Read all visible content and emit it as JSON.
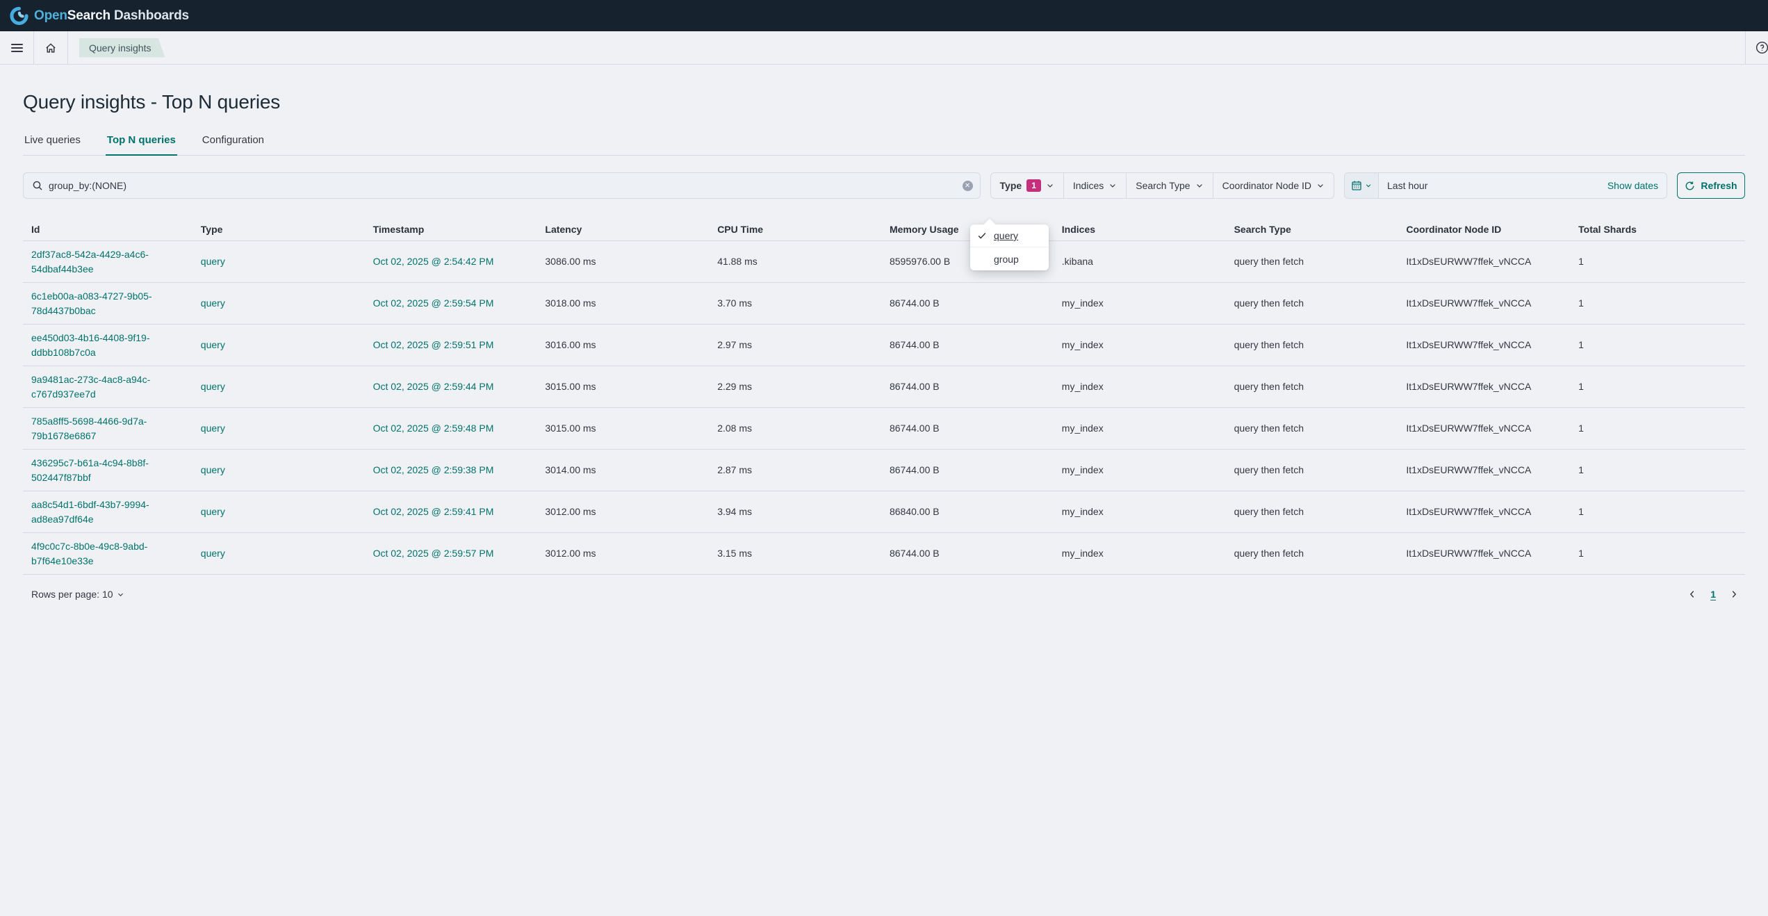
{
  "topbar": {
    "brand_open": "Open",
    "brand_search": "Search",
    "brand_rest": " Dashboards"
  },
  "nav": {
    "breadcrumb": "Query insights"
  },
  "page": {
    "title": "Query insights - Top N queries"
  },
  "tabs": [
    {
      "label": "Live queries",
      "active": false
    },
    {
      "label": "Top N queries",
      "active": true
    },
    {
      "label": "Configuration",
      "active": false
    }
  ],
  "search": {
    "value": "group_by:(NONE)",
    "placeholder": ""
  },
  "filters": [
    {
      "label": "Type",
      "badge": "1"
    },
    {
      "label": "Indices"
    },
    {
      "label": "Search Type"
    },
    {
      "label": "Coordinator Node ID"
    }
  ],
  "type_popover": {
    "items": [
      {
        "label": "query",
        "checked": true
      },
      {
        "label": "group",
        "checked": false
      }
    ]
  },
  "datepicker": {
    "value": "Last hour",
    "show_dates_label": "Show dates",
    "refresh_label": "Refresh"
  },
  "table": {
    "headers": [
      "Id",
      "Type",
      "Timestamp",
      "Latency",
      "CPU Time",
      "Memory Usage",
      "Indices",
      "Search Type",
      "Coordinator Node ID",
      "Total Shards"
    ],
    "rows": [
      {
        "id": "2df37ac8-542a-4429-a4c6-54dbaf44b3ee",
        "type": "query",
        "timestamp": "Oct 02, 2025 @ 2:54:42 PM",
        "latency": "3086.00 ms",
        "cpu": "41.88 ms",
        "memory": "8595976.00 B",
        "indices": ".kibana",
        "search_type": "query then fetch",
        "node": "It1xDsEURWW7ffek_vNCCA",
        "shards": "1"
      },
      {
        "id": "6c1eb00a-a083-4727-9b05-78d4437b0bac",
        "type": "query",
        "timestamp": "Oct 02, 2025 @ 2:59:54 PM",
        "latency": "3018.00 ms",
        "cpu": "3.70 ms",
        "memory": "86744.00 B",
        "indices": "my_index",
        "search_type": "query then fetch",
        "node": "It1xDsEURWW7ffek_vNCCA",
        "shards": "1"
      },
      {
        "id": "ee450d03-4b16-4408-9f19-ddbb108b7c0a",
        "type": "query",
        "timestamp": "Oct 02, 2025 @ 2:59:51 PM",
        "latency": "3016.00 ms",
        "cpu": "2.97 ms",
        "memory": "86744.00 B",
        "indices": "my_index",
        "search_type": "query then fetch",
        "node": "It1xDsEURWW7ffek_vNCCA",
        "shards": "1"
      },
      {
        "id": "9a9481ac-273c-4ac8-a94c-c767d937ee7d",
        "type": "query",
        "timestamp": "Oct 02, 2025 @ 2:59:44 PM",
        "latency": "3015.00 ms",
        "cpu": "2.29 ms",
        "memory": "86744.00 B",
        "indices": "my_index",
        "search_type": "query then fetch",
        "node": "It1xDsEURWW7ffek_vNCCA",
        "shards": "1"
      },
      {
        "id": "785a8ff5-5698-4466-9d7a-79b1678e6867",
        "type": "query",
        "timestamp": "Oct 02, 2025 @ 2:59:48 PM",
        "latency": "3015.00 ms",
        "cpu": "2.08 ms",
        "memory": "86744.00 B",
        "indices": "my_index",
        "search_type": "query then fetch",
        "node": "It1xDsEURWW7ffek_vNCCA",
        "shards": "1"
      },
      {
        "id": "436295c7-b61a-4c94-8b8f-502447f87bbf",
        "type": "query",
        "timestamp": "Oct 02, 2025 @ 2:59:38 PM",
        "latency": "3014.00 ms",
        "cpu": "2.87 ms",
        "memory": "86744.00 B",
        "indices": "my_index",
        "search_type": "query then fetch",
        "node": "It1xDsEURWW7ffek_vNCCA",
        "shards": "1"
      },
      {
        "id": "aa8c54d1-6bdf-43b7-9994-ad8ea97df64e",
        "type": "query",
        "timestamp": "Oct 02, 2025 @ 2:59:41 PM",
        "latency": "3012.00 ms",
        "cpu": "3.94 ms",
        "memory": "86840.00 B",
        "indices": "my_index",
        "search_type": "query then fetch",
        "node": "It1xDsEURWW7ffek_vNCCA",
        "shards": "1"
      },
      {
        "id": "4f9c0c7c-8b0e-49c8-9abd-b7f64e10e33e",
        "type": "query",
        "timestamp": "Oct 02, 2025 @ 2:59:57 PM",
        "latency": "3012.00 ms",
        "cpu": "3.15 ms",
        "memory": "86744.00 B",
        "indices": "my_index",
        "search_type": "query then fetch",
        "node": "It1xDsEURWW7ffek_vNCCA",
        "shards": "1"
      }
    ]
  },
  "footer": {
    "rows_per_page": "Rows per page: 10",
    "page": "1"
  },
  "colors": {
    "primary_teal": "#00726b",
    "accent_badge": "#c4307c",
    "topbar_bg": "#16222e",
    "page_bg": "#eff1f5",
    "border": "#d3dae6",
    "text": "#343741"
  },
  "icons": {
    "menu": "hamburger",
    "home": "house-outline",
    "help": "question-circle",
    "search": "magnifier",
    "clear": "circle-x",
    "chevron_down": "v",
    "calendar": "calendar-grid",
    "refresh": "circular-arrow",
    "check": "checkmark",
    "chevron_left": "<",
    "chevron_right": ">"
  }
}
